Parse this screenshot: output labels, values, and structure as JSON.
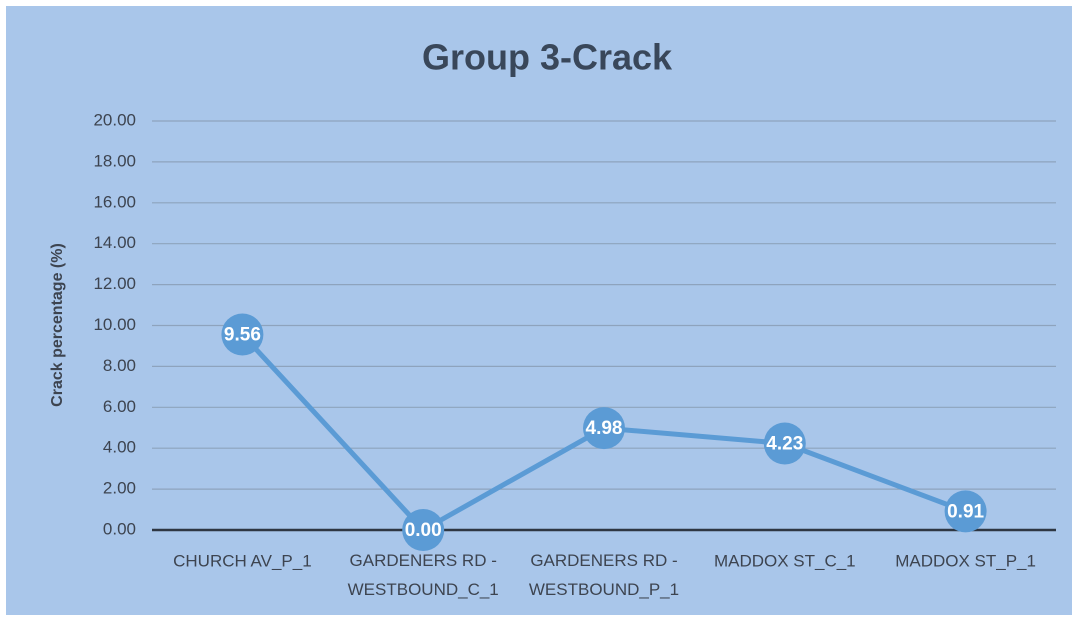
{
  "chart_data": {
    "type": "line",
    "title": "Group 3-Crack",
    "y_label": "Crack percentage (%)",
    "categories": [
      "CHURCH AV_P_1",
      "GARDENERS RD -\nWESTBOUND_C_1",
      "GARDENERS RD -\nWESTBOUND_P_1",
      "MADDOX ST_C_1",
      "MADDOX ST_P_1"
    ],
    "values": [
      9.56,
      0,
      4.98,
      4.23,
      0.91
    ],
    "value_labels": [
      "9.56",
      "0.00",
      "4.98",
      "4.23",
      "0.91"
    ],
    "color": "#5b9bd5",
    "ylim": [
      0,
      20
    ],
    "yticks": [
      {
        "value": 0,
        "label": "0.00"
      },
      {
        "value": 2,
        "label": "2.00"
      },
      {
        "value": 4,
        "label": "4.00"
      },
      {
        "value": 6,
        "label": "6.00"
      },
      {
        "value": 8,
        "label": "8.00"
      },
      {
        "value": 10,
        "label": "10.00"
      },
      {
        "value": 12,
        "label": "12.00"
      },
      {
        "value": 14,
        "label": "14.00"
      },
      {
        "value": 16,
        "label": "16.00"
      },
      {
        "value": 18,
        "label": "18.00"
      },
      {
        "value": 20,
        "label": "20.00"
      }
    ],
    "grid": true
  }
}
